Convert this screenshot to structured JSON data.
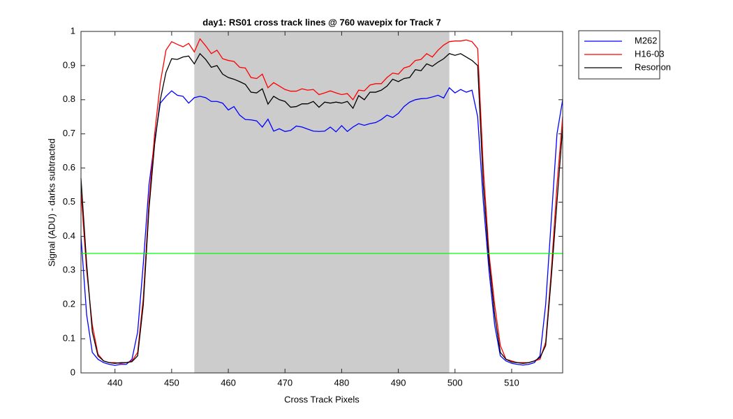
{
  "chart_data": {
    "type": "line",
    "title": "day1: RS01  cross track lines @ 760 wavepix for Track 7",
    "xlabel": "Cross Track Pixels",
    "ylabel": "Signal (ADU) - darks subtracted",
    "x": [
      434,
      435,
      436,
      437,
      438,
      439,
      440,
      441,
      442,
      443,
      444,
      445,
      446,
      447,
      448,
      449,
      450,
      451,
      452,
      453,
      454,
      455,
      456,
      457,
      458,
      459,
      460,
      461,
      462,
      463,
      464,
      465,
      466,
      467,
      468,
      469,
      470,
      471,
      472,
      473,
      474,
      475,
      476,
      477,
      478,
      479,
      480,
      481,
      482,
      483,
      484,
      485,
      486,
      487,
      488,
      489,
      490,
      491,
      492,
      493,
      494,
      495,
      496,
      497,
      498,
      499,
      500,
      501,
      502,
      503,
      504,
      505,
      506,
      507,
      508,
      509,
      510,
      511,
      512,
      513,
      514,
      515,
      516,
      517,
      518,
      519
    ],
    "series": [
      {
        "name": "M262",
        "color": "#0000ff",
        "values": [
          0.4,
          0.17,
          0.06,
          0.04,
          0.03,
          0.025,
          0.022,
          0.025,
          0.025,
          0.04,
          0.12,
          0.32,
          0.55,
          0.68,
          0.79,
          0.81,
          0.826,
          0.813,
          0.81,
          0.79,
          0.806,
          0.81,
          0.806,
          0.795,
          0.795,
          0.79,
          0.77,
          0.78,
          0.755,
          0.742,
          0.741,
          0.738,
          0.72,
          0.743,
          0.708,
          0.715,
          0.707,
          0.71,
          0.723,
          0.72,
          0.714,
          0.708,
          0.707,
          0.708,
          0.72,
          0.706,
          0.724,
          0.707,
          0.72,
          0.73,
          0.725,
          0.73,
          0.733,
          0.742,
          0.755,
          0.748,
          0.76,
          0.78,
          0.793,
          0.8,
          0.803,
          0.804,
          0.808,
          0.813,
          0.805,
          0.835,
          0.82,
          0.83,
          0.822,
          0.828,
          0.75,
          0.5,
          0.3,
          0.14,
          0.05,
          0.035,
          0.028,
          0.025,
          0.023,
          0.025,
          0.03,
          0.05,
          0.2,
          0.45,
          0.7,
          0.8
        ]
      },
      {
        "name": "H16-03",
        "color": "#ff0000",
        "values": [
          0.53,
          0.3,
          0.14,
          0.055,
          0.035,
          0.03,
          0.03,
          0.028,
          0.03,
          0.035,
          0.06,
          0.22,
          0.5,
          0.7,
          0.85,
          0.945,
          0.97,
          0.962,
          0.955,
          0.965,
          0.94,
          0.978,
          0.958,
          0.935,
          0.945,
          0.92,
          0.915,
          0.912,
          0.895,
          0.893,
          0.865,
          0.862,
          0.875,
          0.835,
          0.85,
          0.84,
          0.83,
          0.825,
          0.825,
          0.832,
          0.828,
          0.83,
          0.815,
          0.82,
          0.826,
          0.82,
          0.815,
          0.818,
          0.8,
          0.828,
          0.826,
          0.843,
          0.847,
          0.847,
          0.865,
          0.878,
          0.875,
          0.893,
          0.898,
          0.915,
          0.918,
          0.935,
          0.925,
          0.945,
          0.96,
          0.97,
          0.972,
          0.972,
          0.975,
          0.97,
          0.95,
          0.6,
          0.35,
          0.2,
          0.08,
          0.04,
          0.035,
          0.03,
          0.03,
          0.03,
          0.035,
          0.04,
          0.09,
          0.3,
          0.55,
          0.75
        ]
      },
      {
        "name": "Resonon",
        "color": "#000000",
        "values": [
          0.57,
          0.32,
          0.12,
          0.05,
          0.035,
          0.03,
          0.028,
          0.03,
          0.03,
          0.033,
          0.05,
          0.2,
          0.48,
          0.67,
          0.8,
          0.88,
          0.92,
          0.918,
          0.925,
          0.928,
          0.905,
          0.935,
          0.918,
          0.895,
          0.9,
          0.875,
          0.865,
          0.86,
          0.853,
          0.845,
          0.822,
          0.82,
          0.832,
          0.787,
          0.81,
          0.8,
          0.795,
          0.778,
          0.78,
          0.788,
          0.788,
          0.795,
          0.778,
          0.793,
          0.79,
          0.793,
          0.79,
          0.795,
          0.775,
          0.812,
          0.8,
          0.822,
          0.822,
          0.828,
          0.84,
          0.86,
          0.853,
          0.862,
          0.865,
          0.888,
          0.885,
          0.905,
          0.898,
          0.91,
          0.92,
          0.935,
          0.93,
          0.935,
          0.925,
          0.915,
          0.9,
          0.55,
          0.33,
          0.17,
          0.06,
          0.04,
          0.032,
          0.03,
          0.028,
          0.03,
          0.035,
          0.045,
          0.08,
          0.28,
          0.5,
          0.72
        ]
      }
    ],
    "shaded_region": {
      "x": [
        454,
        499
      ],
      "color": "#cccccc"
    },
    "hline": {
      "value": 0.35,
      "color": "#00ff00"
    },
    "xlim": [
      434,
      519
    ],
    "ylim": [
      0,
      1
    ],
    "xticks": [
      440,
      450,
      460,
      470,
      480,
      490,
      500,
      510
    ],
    "yticks": [
      0,
      0.1,
      0.2,
      0.3,
      0.4,
      0.5,
      0.6,
      0.7,
      0.8,
      0.9,
      1
    ],
    "legend": "outside-right"
  }
}
